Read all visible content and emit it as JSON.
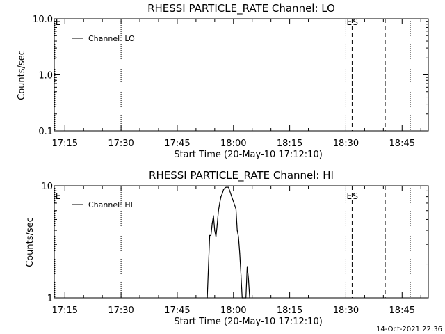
{
  "timestamp": "14-Oct-2021 22:36",
  "chart_data": [
    {
      "type": "line",
      "title": "RHESSI PARTICLE_RATE Channel: LO",
      "xlabel": "Start Time (20-May-10 17:12:10)",
      "ylabel": "Counts/sec",
      "y_scale": "log",
      "xlim": [
        "17:12:10",
        "18:52:00"
      ],
      "ylim": [
        0.1,
        10.0
      ],
      "x_ticks": [
        "17:15",
        "17:30",
        "17:45",
        "18:00",
        "18:15",
        "18:30",
        "18:45"
      ],
      "y_ticks": [
        {
          "value": 0.1,
          "label": "0.1"
        },
        {
          "value": 1.0,
          "label": "1.0"
        },
        {
          "value": 10.0,
          "label": "10.0"
        }
      ],
      "legend": {
        "position": "top-left",
        "entries": [
          "Channel: LO"
        ]
      },
      "series": [
        {
          "name": "Channel: LO",
          "x": [],
          "y": []
        }
      ],
      "vlines": [
        {
          "x": "17:12:20",
          "style": "dotted",
          "label": "E"
        },
        {
          "x": "17:30:00",
          "style": "dotted",
          "label": ""
        },
        {
          "x": "18:30:00",
          "style": "dotted",
          "label": "E"
        },
        {
          "x": "18:31:40",
          "style": "dashed",
          "label": "S"
        },
        {
          "x": "18:40:30",
          "style": "dashed",
          "label": ""
        },
        {
          "x": "18:47:10",
          "style": "dotted",
          "label": ""
        }
      ]
    },
    {
      "type": "line",
      "title": "RHESSI PARTICLE_RATE Channel: HI",
      "xlabel": "Start Time (20-May-10 17:12:10)",
      "ylabel": "Counts/sec",
      "y_scale": "log",
      "xlim": [
        "17:12:10",
        "18:52:00"
      ],
      "ylim": [
        1,
        10
      ],
      "x_ticks": [
        "17:15",
        "17:30",
        "17:45",
        "18:00",
        "18:15",
        "18:30",
        "18:45"
      ],
      "y_ticks": [
        {
          "value": 1,
          "label": "1"
        },
        {
          "value": 10,
          "label": "10"
        }
      ],
      "legend": {
        "position": "top-left",
        "entries": [
          "Channel: HI"
        ]
      },
      "series": [
        {
          "name": "Channel: HI",
          "x": [
            "17:53:00",
            "17:53:20",
            "17:53:40",
            "17:54:00",
            "17:54:20",
            "17:54:40",
            "17:55:00",
            "17:55:20",
            "17:55:40",
            "17:56:00",
            "17:56:20",
            "17:56:40",
            "17:57:00",
            "17:57:20",
            "17:57:40",
            "17:58:00",
            "17:58:40",
            "18:00:40",
            "18:01:00",
            "18:01:20",
            "18:01:40",
            "18:02:00",
            "18:02:20",
            "18:03:20",
            "18:03:40",
            "18:04:00",
            "18:04:20"
          ],
          "y": [
            1.0,
            1.9,
            3.6,
            3.6,
            4.6,
            5.4,
            4.0,
            3.5,
            4.5,
            6.0,
            7.0,
            8.0,
            8.5,
            9.2,
            9.5,
            9.7,
            9.7,
            6.2,
            4.0,
            3.5,
            2.5,
            1.6,
            1.0,
            1.0,
            1.9,
            1.5,
            1.0
          ]
        }
      ],
      "vlines": [
        {
          "x": "17:12:20",
          "style": "dotted",
          "label": "E"
        },
        {
          "x": "17:30:00",
          "style": "dotted",
          "label": ""
        },
        {
          "x": "18:30:00",
          "style": "dotted",
          "label": "E"
        },
        {
          "x": "18:31:40",
          "style": "dashed",
          "label": "S"
        },
        {
          "x": "18:40:30",
          "style": "dashed",
          "label": ""
        },
        {
          "x": "18:47:10",
          "style": "dotted",
          "label": ""
        }
      ]
    }
  ]
}
